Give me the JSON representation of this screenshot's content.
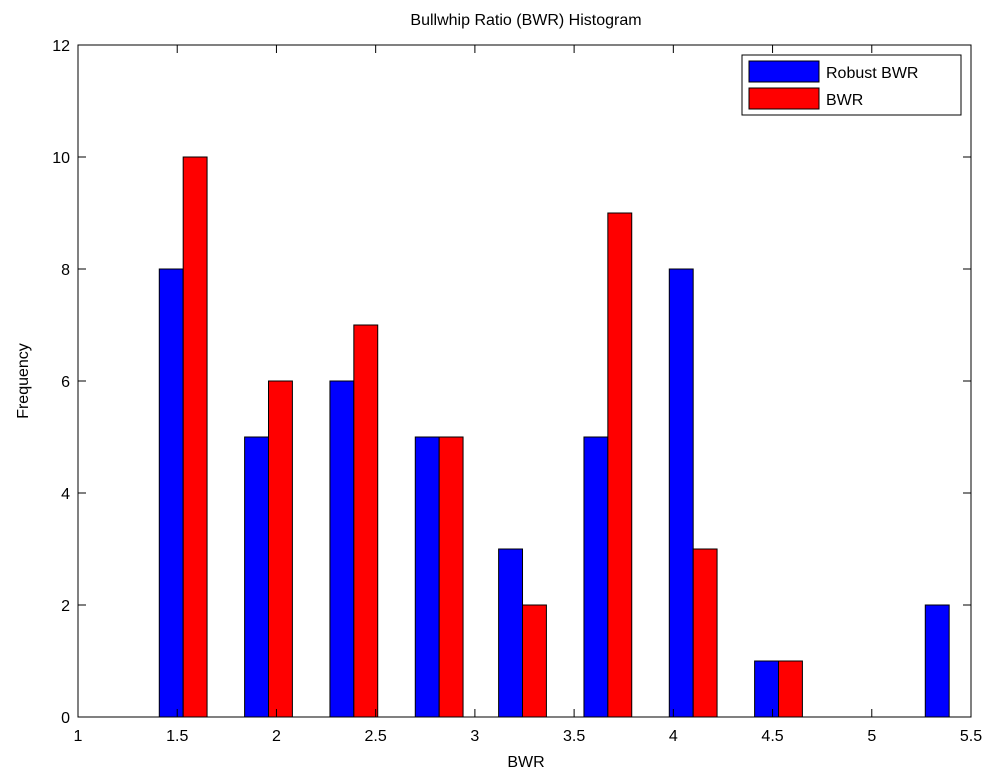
{
  "chart_data": {
    "type": "bar",
    "title": "Bullwhip Ratio (BWR) Histogram",
    "xlabel": "BWR",
    "ylabel": "Frequency",
    "xlim": [
      1,
      5.5
    ],
    "ylim": [
      0,
      12
    ],
    "xticks": [
      "1",
      "1.5",
      "2",
      "2.5",
      "3",
      "3.5",
      "4",
      "4.5",
      "5",
      "5.5"
    ],
    "yticks": [
      "0",
      "2",
      "4",
      "6",
      "8",
      "10",
      "12"
    ],
    "categories": [
      1.53,
      1.96,
      2.39,
      2.82,
      3.24,
      3.67,
      4.1,
      4.53,
      4.96,
      5.39
    ],
    "series": [
      {
        "name": "Robust BWR",
        "color": "#0000ff",
        "values": [
          8,
          5,
          6,
          5,
          3,
          5,
          8,
          1,
          0,
          2
        ]
      },
      {
        "name": "BWR",
        "color": "#ff0000",
        "values": [
          10,
          6,
          7,
          5,
          2,
          9,
          3,
          1,
          0,
          0
        ]
      }
    ],
    "legend": "top-right",
    "grid": false
  }
}
